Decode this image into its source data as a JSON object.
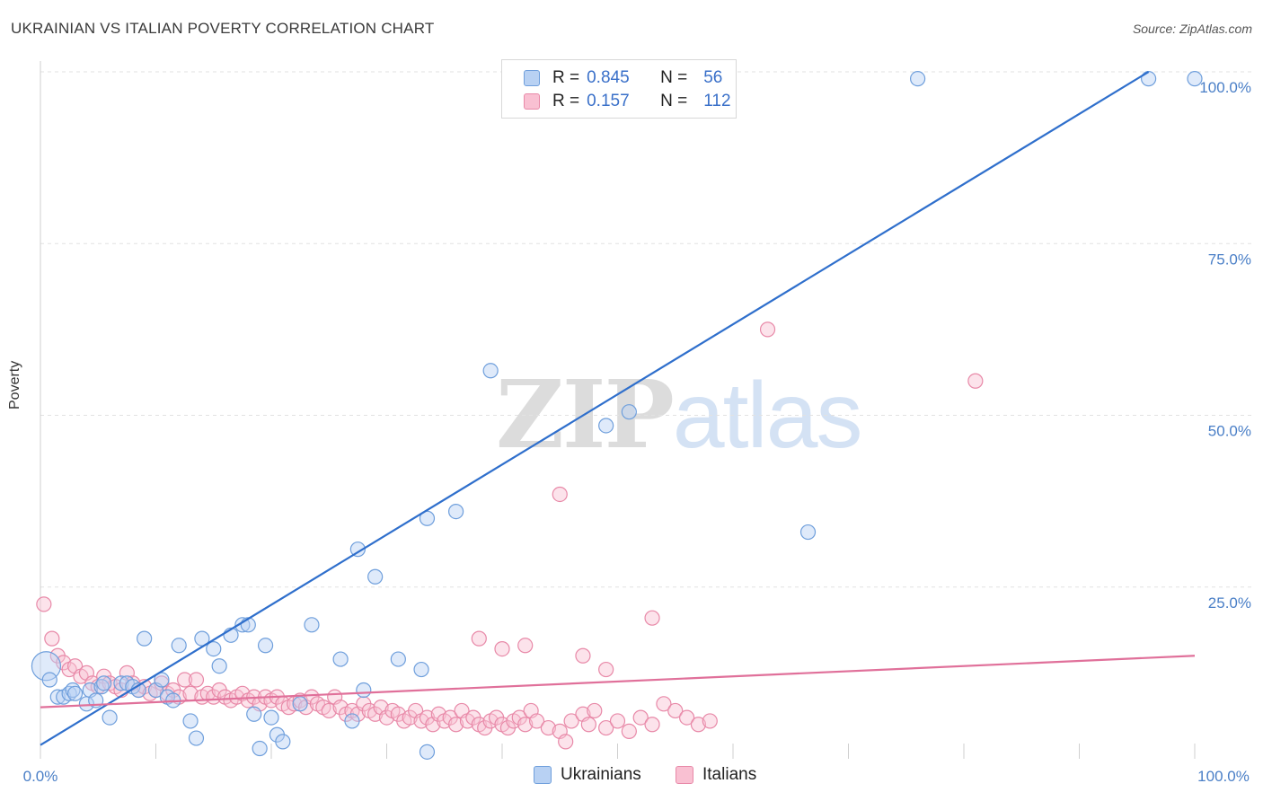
{
  "title": "UKRAINIAN VS ITALIAN POVERTY CORRELATION CHART",
  "source": "Source: ZipAtlas.com",
  "watermark": {
    "zip": "ZIP",
    "atlas": "atlas"
  },
  "legend": {
    "rows": [
      {
        "r_label": "R =",
        "r_value": "0.845",
        "n_label": "N =",
        "n_value": "56",
        "color": "#b8d1f3",
        "border": "#6f9fdc"
      },
      {
        "r_label": "R =",
        "r_value": "0.157",
        "n_label": "N =",
        "n_value": "112",
        "color": "#f9c0d2",
        "border": "#e889a8"
      }
    ]
  },
  "bottom_legend": [
    {
      "label": "Ukrainians",
      "color": "#b8d1f3",
      "border": "#6f9fdc"
    },
    {
      "label": "Italians",
      "color": "#f9c0d2",
      "border": "#e889a8"
    }
  ],
  "chart_data": {
    "type": "scatter",
    "title": "UKRAINIAN VS ITALIAN POVERTY CORRELATION CHART",
    "xlabel": "",
    "ylabel": "Poverty",
    "xlim": [
      0,
      100
    ],
    "ylim": [
      0,
      100
    ],
    "x_tick_labels": [
      "0.0%",
      "100.0%"
    ],
    "y_ticks": [
      {
        "value": 25,
        "label": "25.0%"
      },
      {
        "value": 50,
        "label": "50.0%"
      },
      {
        "value": 75,
        "label": "75.0%"
      },
      {
        "value": 100,
        "label": "100.0%"
      }
    ],
    "grid": true,
    "series": [
      {
        "name": "Ukrainians",
        "color": "#6f9fdc",
        "fill": "#b8d1f3",
        "trend_color": "#2f6fcc",
        "trend": {
          "x": [
            0,
            96
          ],
          "y": [
            2,
            100
          ]
        },
        "points": [
          [
            0.5,
            13.5
          ],
          [
            0.8,
            11.5
          ],
          [
            1.5,
            9
          ],
          [
            2,
            9
          ],
          [
            2.5,
            9.5
          ],
          [
            2.8,
            10
          ],
          [
            3,
            9.5
          ],
          [
            4,
            8
          ],
          [
            4.3,
            10
          ],
          [
            4.8,
            8.5
          ],
          [
            5.3,
            10.5
          ],
          [
            5.5,
            11
          ],
          [
            6,
            6
          ],
          [
            7,
            11
          ],
          [
            7.5,
            11
          ],
          [
            8,
            10.5
          ],
          [
            8.5,
            10
          ],
          [
            9,
            17.5
          ],
          [
            10,
            10
          ],
          [
            10.5,
            11.5
          ],
          [
            11,
            9
          ],
          [
            11.5,
            8.5
          ],
          [
            12,
            16.5
          ],
          [
            13,
            5.5
          ],
          [
            13.5,
            3
          ],
          [
            14,
            17.5
          ],
          [
            15,
            16
          ],
          [
            15.5,
            13.5
          ],
          [
            16.5,
            18
          ],
          [
            17.5,
            19.5
          ],
          [
            18,
            19.5
          ],
          [
            18.5,
            6.5
          ],
          [
            19,
            1.5
          ],
          [
            19.5,
            16.5
          ],
          [
            20,
            6
          ],
          [
            20.5,
            3.5
          ],
          [
            21,
            2.5
          ],
          [
            22.5,
            8
          ],
          [
            23.5,
            19.5
          ],
          [
            26,
            14.5
          ],
          [
            27,
            5.5
          ],
          [
            27.5,
            30.5
          ],
          [
            28,
            10
          ],
          [
            29,
            26.5
          ],
          [
            31,
            14.5
          ],
          [
            33,
            13
          ],
          [
            33.5,
            1
          ],
          [
            33.5,
            35
          ],
          [
            36,
            36
          ],
          [
            39,
            56.5
          ],
          [
            49,
            48.5
          ],
          [
            51,
            50.5
          ],
          [
            66.5,
            33
          ],
          [
            76,
            99
          ],
          [
            96,
            99
          ],
          [
            100,
            99
          ]
        ]
      },
      {
        "name": "Italians",
        "color": "#e889a8",
        "fill": "#f9c0d2",
        "trend_color": "#e0709a",
        "trend": {
          "x": [
            0,
            100
          ],
          "y": [
            7.5,
            15
          ]
        },
        "points": [
          [
            0.3,
            22.5
          ],
          [
            1,
            17.5
          ],
          [
            1.5,
            15
          ],
          [
            2,
            14
          ],
          [
            2.5,
            13
          ],
          [
            3,
            13.5
          ],
          [
            3.5,
            12
          ],
          [
            4,
            12.5
          ],
          [
            4.5,
            11
          ],
          [
            5,
            10.5
          ],
          [
            5.5,
            12
          ],
          [
            6,
            11
          ],
          [
            6.5,
            10.5
          ],
          [
            7,
            10
          ],
          [
            7.5,
            12.5
          ],
          [
            8,
            11
          ],
          [
            8.5,
            10
          ],
          [
            9,
            10.5
          ],
          [
            9.5,
            9.5
          ],
          [
            10,
            10
          ],
          [
            10.5,
            11
          ],
          [
            11,
            9.5
          ],
          [
            11.5,
            10
          ],
          [
            12,
            9
          ],
          [
            12.5,
            11.5
          ],
          [
            13,
            9.5
          ],
          [
            13.5,
            11.5
          ],
          [
            14,
            9
          ],
          [
            14.5,
            9.5
          ],
          [
            15,
            9
          ],
          [
            15.5,
            10
          ],
          [
            16,
            9
          ],
          [
            16.5,
            8.5
          ],
          [
            17,
            9
          ],
          [
            17.5,
            9.5
          ],
          [
            18,
            8.5
          ],
          [
            18.5,
            9
          ],
          [
            19,
            8
          ],
          [
            19.5,
            9
          ],
          [
            20,
            8.5
          ],
          [
            20.5,
            9
          ],
          [
            21,
            8
          ],
          [
            21.5,
            7.5
          ],
          [
            22,
            8
          ],
          [
            22.5,
            8.5
          ],
          [
            23,
            7.5
          ],
          [
            23.5,
            9
          ],
          [
            24,
            8
          ],
          [
            24.5,
            7.5
          ],
          [
            25,
            7
          ],
          [
            25.5,
            9
          ],
          [
            26,
            7.5
          ],
          [
            26.5,
            6.5
          ],
          [
            27,
            7
          ],
          [
            27.5,
            6.5
          ],
          [
            28,
            8
          ],
          [
            28.5,
            7
          ],
          [
            29,
            6.5
          ],
          [
            29.5,
            7.5
          ],
          [
            30,
            6
          ],
          [
            30.5,
            7
          ],
          [
            31,
            6.5
          ],
          [
            31.5,
            5.5
          ],
          [
            32,
            6
          ],
          [
            32.5,
            7
          ],
          [
            33,
            5.5
          ],
          [
            33.5,
            6
          ],
          [
            34,
            5
          ],
          [
            34.5,
            6.5
          ],
          [
            35,
            5.5
          ],
          [
            35.5,
            6
          ],
          [
            36,
            5
          ],
          [
            36.5,
            7
          ],
          [
            37,
            5.5
          ],
          [
            37.5,
            6
          ],
          [
            38,
            5
          ],
          [
            38.5,
            4.5
          ],
          [
            39,
            5.5
          ],
          [
            39.5,
            6
          ],
          [
            40,
            5
          ],
          [
            40.5,
            4.5
          ],
          [
            41,
            5.5
          ],
          [
            41.5,
            6
          ],
          [
            42,
            5
          ],
          [
            42.5,
            7
          ],
          [
            43,
            5.5
          ],
          [
            44,
            4.5
          ],
          [
            45,
            4
          ],
          [
            45.5,
            2.5
          ],
          [
            46,
            5.5
          ],
          [
            47,
            6.5
          ],
          [
            47.5,
            5
          ],
          [
            48,
            7
          ],
          [
            49,
            4.5
          ],
          [
            50,
            5.5
          ],
          [
            51,
            4
          ],
          [
            52,
            6
          ],
          [
            53,
            5
          ],
          [
            54,
            8
          ],
          [
            55,
            7
          ],
          [
            56,
            6
          ],
          [
            57,
            5
          ],
          [
            58,
            5.5
          ],
          [
            38,
            17.5
          ],
          [
            40,
            16
          ],
          [
            42,
            16.5
          ],
          [
            45,
            38.5
          ],
          [
            47,
            15
          ],
          [
            49,
            13
          ],
          [
            53,
            20.5
          ],
          [
            63,
            62.5
          ],
          [
            81,
            55
          ]
        ]
      }
    ]
  }
}
